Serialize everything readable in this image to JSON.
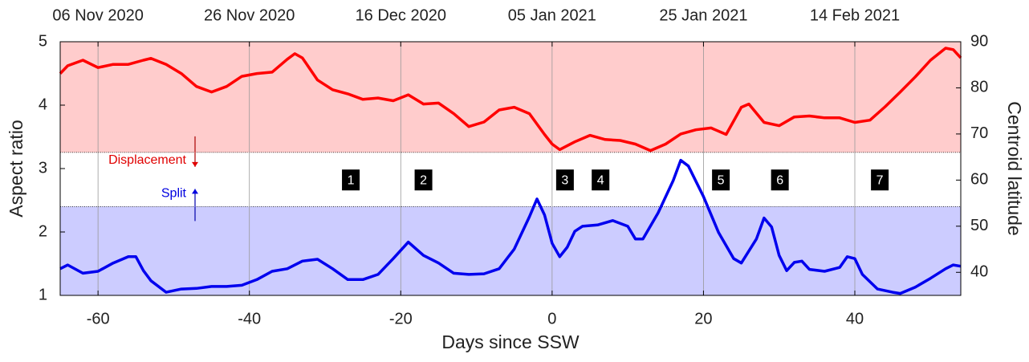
{
  "chart_data": {
    "type": "line",
    "xlabel": "Days since SSW",
    "ylabel": "Aspect ratio",
    "y2label": "Centroid latitude",
    "xlim": [
      -65,
      54
    ],
    "xticks": [
      -60,
      -40,
      -20,
      0,
      20,
      40
    ],
    "x2ticks": [
      {
        "value": -60,
        "label": "06 Nov 2020"
      },
      {
        "value": -40,
        "label": "26 Nov 2020"
      },
      {
        "value": -20,
        "label": "16 Dec 2020"
      },
      {
        "value": 0,
        "label": "05 Jan 2021"
      },
      {
        "value": 20,
        "label": "25 Jan 2021"
      },
      {
        "value": 40,
        "label": "14 Feb 2021"
      }
    ],
    "ylim": [
      1,
      5
    ],
    "yticks": [
      1,
      2,
      3,
      4,
      5
    ],
    "y2lim": [
      35,
      90
    ],
    "y2ticks": [
      40,
      50,
      60,
      70,
      80,
      90
    ],
    "grid": true,
    "regions": [
      {
        "axis": "y2",
        "threshold": 66,
        "side": "above",
        "color": "#ffcccc",
        "label": "Displacement",
        "label_color": "#e00000"
      },
      {
        "axis": "y",
        "threshold": 2.4,
        "side": "below",
        "color": "#ccccff",
        "label": "Split",
        "label_color": "#0000e0"
      }
    ],
    "events": [
      {
        "label": "1",
        "x": -26.6
      },
      {
        "label": "2",
        "x": -17
      },
      {
        "label": "3",
        "x": 1.7
      },
      {
        "label": "4",
        "x": 6.4
      },
      {
        "label": "5",
        "x": 22.3
      },
      {
        "label": "6",
        "x": 30.1
      },
      {
        "label": "7",
        "x": 43.3
      }
    ],
    "events_y": 2.82,
    "series": [
      {
        "color": "#ff0000",
        "axis": "y2",
        "x": [
          -65,
          -64,
          -62,
          -60,
          -58,
          -56,
          -54,
          -53,
          -51,
          -49,
          -47,
          -45,
          -43,
          -41,
          -39,
          -37,
          -35,
          -34,
          -33,
          -31,
          -29,
          -27,
          -25,
          -23,
          -21,
          -19,
          -17,
          -15,
          -13,
          -11,
          -9,
          -7,
          -5,
          -3,
          -1,
          0,
          1,
          3,
          5,
          7,
          9,
          11,
          13,
          15,
          17,
          19,
          21,
          23,
          25,
          26,
          28,
          30,
          32,
          34,
          36,
          38,
          40,
          42,
          44,
          46,
          48,
          50,
          52,
          53,
          54
        ],
        "values": [
          83.1,
          84.8,
          86.0,
          84.4,
          85.1,
          85.1,
          86.0,
          86.4,
          85.1,
          83.1,
          80.3,
          79.1,
          80.3,
          82.5,
          83.1,
          83.4,
          86.2,
          87.4,
          86.5,
          81.7,
          79.6,
          78.7,
          77.5,
          77.8,
          77.2,
          78.5,
          76.5,
          76.7,
          74.4,
          71.6,
          72.6,
          75.2,
          75.8,
          74.4,
          69.9,
          67.8,
          66.6,
          68.3,
          69.7,
          68.8,
          68.6,
          67.8,
          66.4,
          67.8,
          70.0,
          70.9,
          71.3,
          69.9,
          75.8,
          76.5,
          72.5,
          71.8,
          73.7,
          73.9,
          73.5,
          73.5,
          72.5,
          73.0,
          75.9,
          79.1,
          82.4,
          86.0,
          88.6,
          88.3,
          86.5
        ]
      },
      {
        "color": "#0000ee",
        "axis": "y",
        "x": [
          -65,
          -64,
          -62,
          -60,
          -58,
          -56,
          -55,
          -54,
          -53,
          -51,
          -49,
          -47,
          -45,
          -43,
          -41,
          -39,
          -37,
          -35,
          -33,
          -31,
          -29,
          -27,
          -25,
          -23,
          -21,
          -19,
          -17,
          -15,
          -13,
          -11,
          -9,
          -7,
          -5,
          -3,
          -2,
          -1,
          0,
          1,
          2,
          3,
          4,
          6,
          8,
          10,
          11,
          12,
          14,
          16,
          17,
          18,
          20,
          22,
          24,
          25,
          27,
          28,
          29,
          30,
          31,
          32,
          33,
          34,
          36,
          38,
          39,
          40,
          41,
          43,
          45,
          46,
          48,
          50,
          52,
          53,
          54
        ],
        "values": [
          1.42,
          1.48,
          1.35,
          1.38,
          1.51,
          1.61,
          1.61,
          1.39,
          1.23,
          1.05,
          1.1,
          1.11,
          1.14,
          1.14,
          1.16,
          1.25,
          1.38,
          1.42,
          1.54,
          1.57,
          1.42,
          1.25,
          1.25,
          1.33,
          1.58,
          1.84,
          1.63,
          1.51,
          1.35,
          1.33,
          1.34,
          1.42,
          1.73,
          2.24,
          2.52,
          2.27,
          1.82,
          1.61,
          1.76,
          2.01,
          2.09,
          2.11,
          2.18,
          2.09,
          1.89,
          1.89,
          2.3,
          2.81,
          3.13,
          3.04,
          2.56,
          1.99,
          1.58,
          1.51,
          1.89,
          2.22,
          2.08,
          1.63,
          1.39,
          1.52,
          1.54,
          1.41,
          1.38,
          1.44,
          1.61,
          1.58,
          1.33,
          1.1,
          1.05,
          1.03,
          1.13,
          1.27,
          1.42,
          1.48,
          1.46
        ]
      }
    ]
  }
}
